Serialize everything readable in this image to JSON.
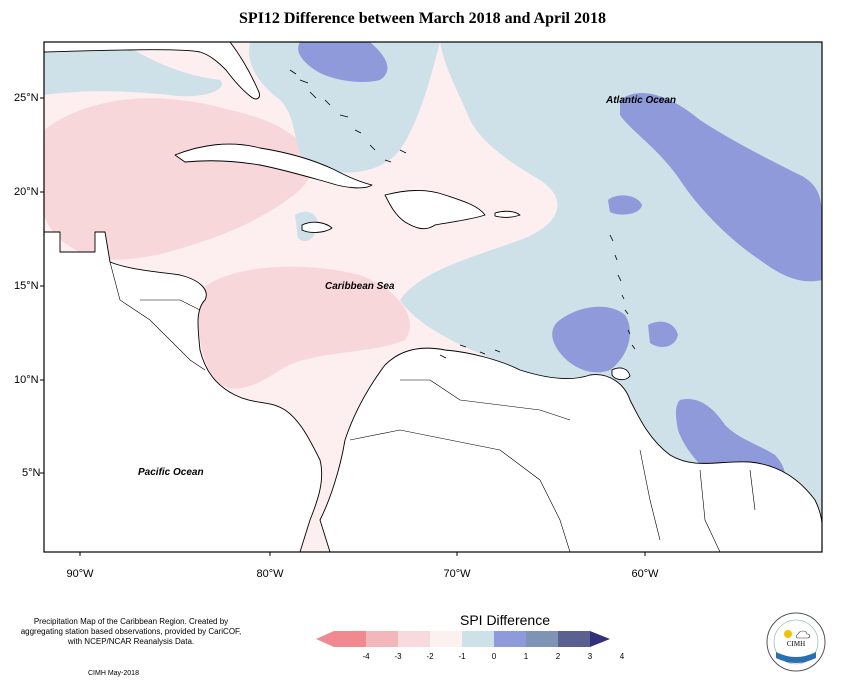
{
  "title": "SPI12 Difference between March 2018 and April 2018",
  "map_labels": {
    "atlantic": "Atlantic Ocean",
    "caribbean": "Caribbean Sea",
    "pacific": "Pacific Ocean"
  },
  "lat_labels": [
    "25°N",
    "20°N",
    "15°N",
    "10°N",
    "5°N"
  ],
  "lon_labels": [
    "90°W",
    "80°W",
    "70°W",
    "60°W"
  ],
  "caption": "Precipitation Map of the Caribbean Region. Created by aggregating station based observations, provided by CariCOF, with NCEP/NCAR Reanalysis Data.",
  "credit": "CIMH May-2018",
  "legend": {
    "title": "SPI Difference",
    "ticks": [
      "-4",
      "-3",
      "-2",
      "-1",
      "0",
      "1",
      "2",
      "3",
      "4"
    ],
    "colors": [
      "#f08a90",
      "#f2b7bb",
      "#f8d9dc",
      "#fdf0f1",
      "#cfe1e8",
      "#8e9ad9",
      "#7f93b4",
      "#5a6191",
      "#332f78"
    ]
  },
  "logo": {
    "text": "CIMH"
  }
}
